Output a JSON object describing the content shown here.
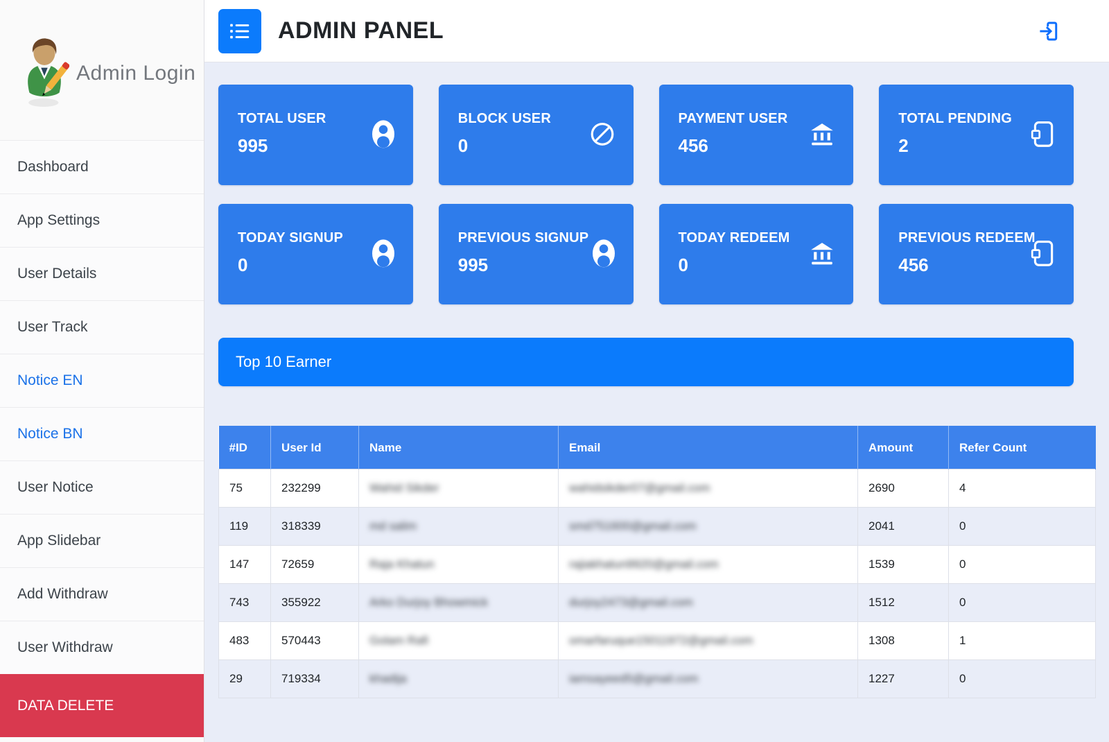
{
  "colors": {
    "card_blue": "#2e7ceb",
    "bar_blue": "#0b7bfc",
    "table_header_blue": "#3d82ec",
    "danger_red": "#d9394f",
    "link_blue": "#1b72e8",
    "logout_blue": "#0d6efd",
    "body_bg": "#e9edf8"
  },
  "sidebar": {
    "profile": {
      "label": "Admin Login",
      "avatar": "admin-avatar"
    },
    "items": [
      {
        "label": "Dashboard",
        "variant": "default"
      },
      {
        "label": "App Settings",
        "variant": "default"
      },
      {
        "label": "User Details",
        "variant": "default"
      },
      {
        "label": "User Track",
        "variant": "default"
      },
      {
        "label": "Notice EN",
        "variant": "link"
      },
      {
        "label": "Notice BN",
        "variant": "link"
      },
      {
        "label": "User Notice",
        "variant": "default"
      },
      {
        "label": "App Slidebar",
        "variant": "default"
      },
      {
        "label": "Add Withdraw",
        "variant": "default"
      },
      {
        "label": "User Withdraw",
        "variant": "default"
      },
      {
        "label": "DATA DELETE",
        "variant": "danger"
      }
    ]
  },
  "header": {
    "title": "ADMIN PANEL",
    "menu_icon": "list-icon",
    "logout_icon": "box-arrow-in-right-icon"
  },
  "stats": [
    {
      "label": "TOTAL USER",
      "value": "995",
      "icon": "person-icon"
    },
    {
      "label": "BLOCK USER",
      "value": "0",
      "icon": "ban-icon"
    },
    {
      "label": "PAYMENT USER",
      "value": "456",
      "icon": "bank-icon"
    },
    {
      "label": "TOTAL PENDING",
      "value": "2",
      "icon": "wallet-icon"
    },
    {
      "label": "TODAY SIGNUP",
      "value": "0",
      "icon": "person-icon"
    },
    {
      "label": "PREVIOUS SIGNUP",
      "value": "995",
      "icon": "person-icon"
    },
    {
      "label": "TODAY REDEEM",
      "value": "0",
      "icon": "bank-icon"
    },
    {
      "label": "PREVIOUS REDEEM",
      "value": "456",
      "icon": "wallet-icon"
    }
  ],
  "section": {
    "title": "Top 10 Earner"
  },
  "table": {
    "columns": [
      "#ID",
      "User Id",
      "Name",
      "Email",
      "Amount",
      "Refer Count"
    ],
    "blurred_columns": [
      "name",
      "email"
    ],
    "rows": [
      {
        "id": "75",
        "user_id": "232299",
        "name": "Wahid Sikder",
        "email": "wahidsikder07@gmail.com",
        "amount": "2690",
        "refer_count": "4"
      },
      {
        "id": "119",
        "user_id": "318339",
        "name": "md salim",
        "email": "smd751600@gmail.com",
        "amount": "2041",
        "refer_count": "0"
      },
      {
        "id": "147",
        "user_id": "72659",
        "name": "Raja Khatun",
        "email": "rajiakhatun9920@gmail.com",
        "amount": "1539",
        "refer_count": "0"
      },
      {
        "id": "743",
        "user_id": "355922",
        "name": "Arko Durjoy Bhowmick",
        "email": "durjoy2473@gmail.com",
        "amount": "1512",
        "refer_count": "0"
      },
      {
        "id": "483",
        "user_id": "570443",
        "name": "Golam Rafi",
        "email": "omarfaruque15011972@gmail.com",
        "amount": "1308",
        "refer_count": "1"
      },
      {
        "id": "29",
        "user_id": "719334",
        "name": "khadija",
        "email": "iamsayeed5@gmail.com",
        "amount": "1227",
        "refer_count": "0"
      }
    ]
  }
}
